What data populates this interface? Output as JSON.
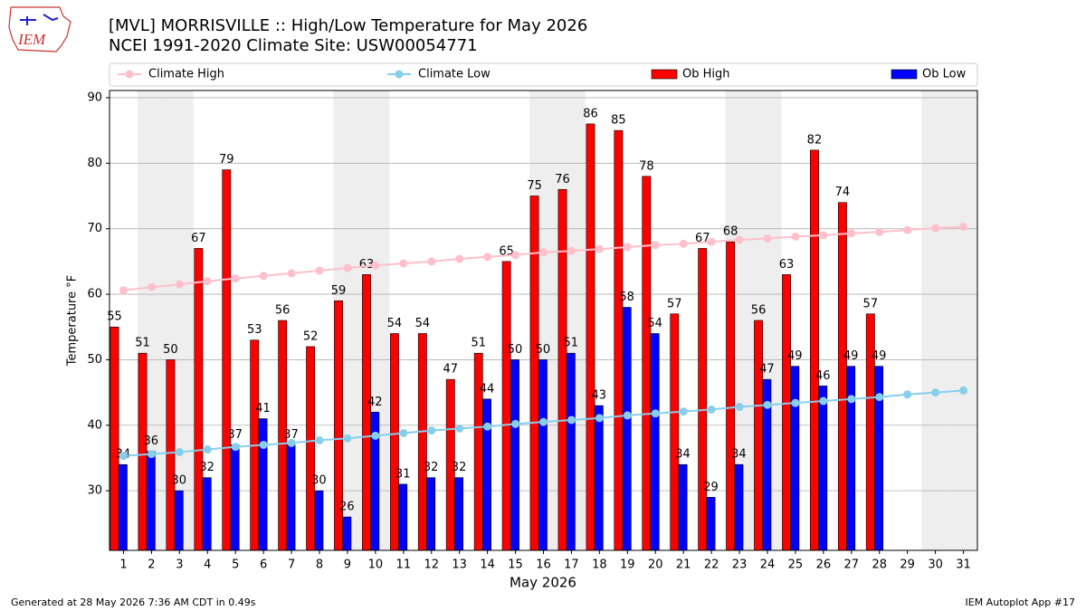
{
  "chart_data": {
    "type": "bar",
    "title": "[MVL] MORRISVILLE :: High/Low Temperature for May 2026",
    "subtitle": "NCEI 1991-2020 Climate Site: USW00054771",
    "logo": "IEM",
    "x_label": "May 2026",
    "y_label": "Temperature °F",
    "footer_left": "Generated at 28 May 2026 7:36 AM CDT in 0.49s",
    "footer_right": "IEM Autoplot App #17",
    "x": [
      1,
      2,
      3,
      4,
      5,
      6,
      7,
      8,
      9,
      10,
      11,
      12,
      13,
      14,
      15,
      16,
      17,
      18,
      19,
      20,
      21,
      22,
      23,
      24,
      25,
      26,
      27,
      28,
      29,
      30,
      31
    ],
    "xlim": [
      0.5,
      31.5
    ],
    "xticks": [
      1,
      2,
      3,
      4,
      5,
      6,
      7,
      8,
      9,
      10,
      11,
      12,
      13,
      14,
      15,
      16,
      17,
      18,
      19,
      20,
      21,
      22,
      23,
      24,
      25,
      26,
      27,
      28,
      29,
      30,
      31
    ],
    "ylim": [
      20.9,
      91.1
    ],
    "yticks": [
      30,
      40,
      50,
      60,
      70,
      80,
      90
    ],
    "grid": true,
    "shaded_days": [
      2,
      3,
      9,
      10,
      16,
      17,
      23,
      24,
      30,
      31
    ],
    "series": [
      {
        "name": "Climate High",
        "kind": "line",
        "color": "#ffc0cb",
        "values": [
          60.6,
          61.1,
          61.5,
          62.0,
          62.4,
          62.8,
          63.2,
          63.6,
          64.0,
          64.4,
          64.7,
          65.0,
          65.4,
          65.7,
          66.0,
          66.4,
          66.6,
          66.9,
          67.2,
          67.5,
          67.7,
          68.0,
          68.3,
          68.5,
          68.8,
          69.0,
          69.3,
          69.5,
          69.8,
          70.1,
          70.3
        ]
      },
      {
        "name": "Climate Low",
        "kind": "line",
        "color": "#87ceeb",
        "values": [
          35.3,
          35.6,
          35.9,
          36.3,
          36.7,
          37.0,
          37.3,
          37.7,
          38.0,
          38.4,
          38.8,
          39.2,
          39.5,
          39.8,
          40.2,
          40.5,
          40.8,
          41.1,
          41.5,
          41.8,
          42.1,
          42.4,
          42.8,
          43.1,
          43.4,
          43.7,
          44.0,
          44.3,
          44.7,
          45.0,
          45.3
        ]
      },
      {
        "name": "Ob High",
        "kind": "bar",
        "color": "#ff0000",
        "values": [
          55,
          51,
          50,
          67,
          79,
          53,
          56,
          52,
          59,
          63,
          54,
          54,
          47,
          51,
          65,
          75,
          76,
          86,
          85,
          78,
          57,
          67,
          68,
          56,
          63,
          82,
          74,
          57,
          null,
          null,
          null
        ]
      },
      {
        "name": "Ob Low",
        "kind": "bar",
        "color": "#0000ff",
        "values": [
          34,
          36,
          30,
          32,
          37,
          41,
          37,
          30,
          26,
          42,
          31,
          32,
          32,
          44,
          50,
          50,
          51,
          43,
          58,
          54,
          34,
          29,
          34,
          47,
          49,
          46,
          49,
          49,
          null,
          null,
          null
        ]
      }
    ]
  }
}
